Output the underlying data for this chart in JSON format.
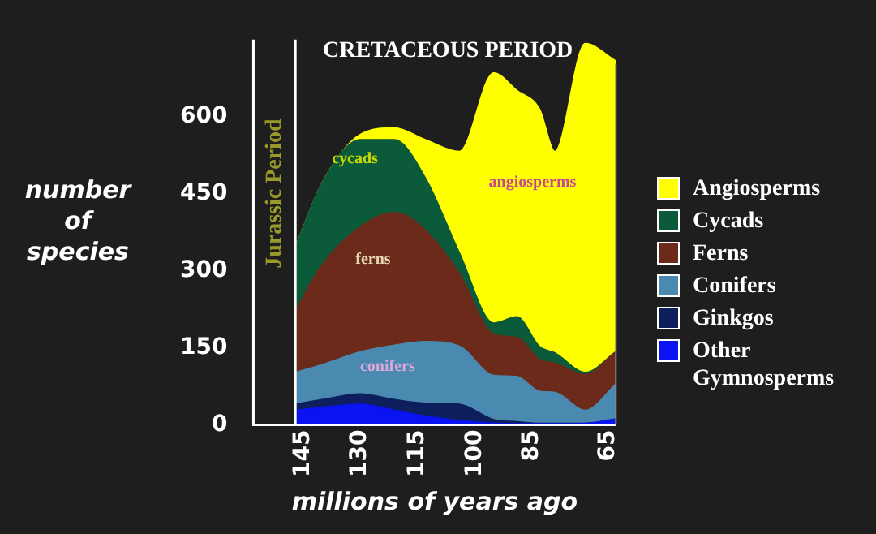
{
  "chart_data": {
    "type": "area",
    "title": "CRETACEOUS PERIOD",
    "xlabel": "millions of years ago",
    "ylabel": "number of species",
    "stacked": true,
    "legend": "right",
    "legend_title": null,
    "x": [
      147,
      140,
      130,
      121,
      113,
      104,
      95,
      89,
      83,
      79,
      71,
      63
    ],
    "xlim": [
      158,
      63
    ],
    "xticks": [
      145,
      130,
      115,
      100,
      85,
      65
    ],
    "ylim": [
      0,
      750
    ],
    "yticks": [
      0,
      150,
      300,
      450,
      600
    ],
    "grid": false,
    "series": [
      {
        "name": "Other Gymnosperms",
        "color": "#0a14f0",
        "values": [
          28,
          34,
          40,
          28,
          17,
          8,
          3,
          2,
          2,
          2,
          3,
          11
        ]
      },
      {
        "name": "Ginkgos",
        "color": "#0d1f5c",
        "values": [
          12,
          15,
          20,
          21,
          25,
          32,
          7,
          4,
          1,
          1,
          0,
          0
        ]
      },
      {
        "name": "Conifers",
        "color": "#4a8ab0",
        "values": [
          62,
          68,
          82,
          106,
          120,
          113,
          86,
          88,
          62,
          60,
          25,
          68
        ]
      },
      {
        "name": "Ferns",
        "color": "#6b2a1a",
        "values": [
          119,
          194,
          243,
          258,
          217,
          141,
          80,
          76,
          62,
          57,
          70,
          63
        ]
      },
      {
        "name": "Cycads",
        "color": "#0b5a3a",
        "values": [
          124,
          159,
          170,
          142,
          102,
          40,
          22,
          40,
          25,
          20,
          4,
          0
        ]
      },
      {
        "name": "Angiosperms",
        "color": "#ffff00",
        "values": [
          0,
          0,
          10,
          23,
          74,
          198,
          487,
          441,
          462,
          392,
          640,
          566
        ]
      }
    ],
    "ref_lines": [
      {
        "axis": "x",
        "value": 147,
        "label": "Jurassic Period",
        "color": "#ffffff"
      }
    ],
    "annotations": [
      "cycads",
      "ferns",
      "conifers",
      "angiosperms"
    ]
  }
}
